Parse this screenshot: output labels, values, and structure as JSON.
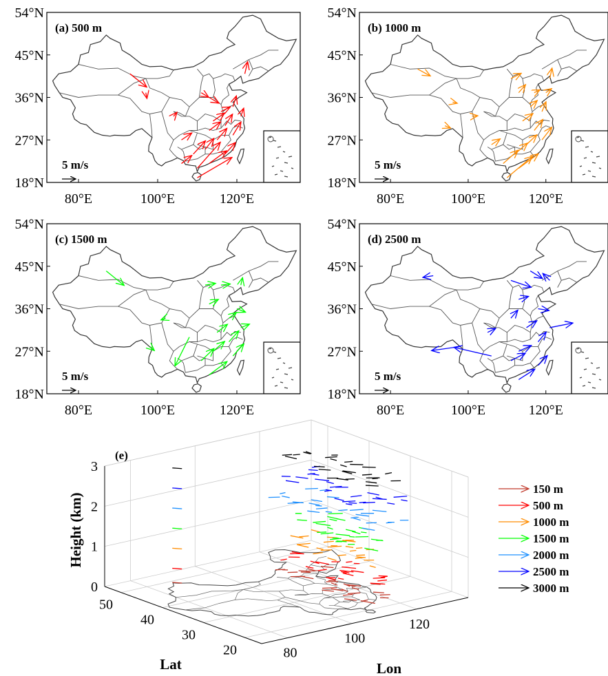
{
  "chart_data": [
    {
      "type": "vector-map",
      "panel": "(a) 500 m",
      "color": "#ff0000",
      "scale_label": "5 m/s",
      "x_ticks": [
        "80°E",
        "100°E",
        "120°E"
      ],
      "y_ticks": [
        "54°N",
        "45°N",
        "36°N",
        "27°N",
        "18°N"
      ],
      "x_range": [
        72,
        136
      ],
      "y_range": [
        18,
        54
      ],
      "vectors": [
        [
          93,
          41,
          5.8,
          -4.6
        ],
        [
          122,
          41,
          1.0,
          4.2
        ],
        [
          111,
          37,
          2.6,
          -1.6
        ],
        [
          113,
          36,
          3.4,
          -2.0
        ],
        [
          116,
          33,
          3.2,
          1.6
        ],
        [
          114,
          31,
          4.0,
          2.8
        ],
        [
          117,
          30,
          2.6,
          4.0
        ],
        [
          119,
          28,
          2.8,
          4.6
        ],
        [
          115,
          27,
          3.4,
          4.0
        ],
        [
          112,
          25,
          3.0,
          3.8
        ],
        [
          109,
          24,
          4.2,
          4.6
        ],
        [
          113,
          22,
          6.0,
          4.4
        ],
        [
          117,
          24,
          3.6,
          4.0
        ],
        [
          110,
          21,
          8.0,
          9.0
        ],
        [
          110,
          19,
          12.0,
          7.0
        ],
        [
          119,
          34,
          1.2,
          3.8
        ],
        [
          121,
          32,
          1.0,
          2.8
        ],
        [
          106,
          27,
          3.6,
          2.4
        ],
        [
          104,
          32,
          1.2,
          1.4
        ],
        [
          97,
          37,
          0.4,
          -2.0
        ],
        [
          113,
          29,
          4.0,
          3.0
        ],
        [
          106,
          22,
          3.6,
          2.8
        ]
      ]
    },
    {
      "type": "vector-map",
      "panel": "(b) 1000 m",
      "color": "#ff8c00",
      "scale_label": "5 m/s",
      "x_ticks": [
        "80°E",
        "100°E",
        "120°E"
      ],
      "y_ticks": [
        "54°N",
        "45°N",
        "36°N",
        "27°N",
        "18°N"
      ],
      "x_range": [
        72,
        136
      ],
      "y_range": [
        18,
        54
      ],
      "vectors": [
        [
          87,
          42,
          4.4,
          -2.4
        ],
        [
          121,
          40,
          0.8,
          3.6
        ],
        [
          111,
          40,
          3.6,
          1.8
        ],
        [
          113,
          37,
          2.4,
          2.8
        ],
        [
          116,
          34,
          2.4,
          2.2
        ],
        [
          114,
          31,
          3.6,
          2.6
        ],
        [
          117,
          29,
          3.0,
          3.8
        ],
        [
          119,
          27,
          3.4,
          4.4
        ],
        [
          115,
          26,
          3.6,
          3.4
        ],
        [
          112,
          24,
          4.4,
          3.8
        ],
        [
          109,
          22,
          5.2,
          4.6
        ],
        [
          113,
          21,
          6.8,
          5.0
        ],
        [
          110,
          19,
          8.8,
          7.4
        ],
        [
          119,
          33,
          1.4,
          3.4
        ],
        [
          96,
          35,
          1.6,
          -0.4
        ],
        [
          101,
          32,
          2.0,
          0.2
        ],
        [
          94,
          30,
          2.0,
          -0.8
        ],
        [
          106,
          26,
          3.0,
          2.0
        ],
        [
          120,
          37,
          2.0,
          1.4
        ],
        [
          117,
          37,
          2.0,
          1.0
        ]
      ]
    },
    {
      "type": "vector-map",
      "panel": "(c) 1500 m",
      "color": "#00ff00",
      "scale_label": "5 m/s",
      "x_ticks": [
        "80°E",
        "100°E",
        "120°E"
      ],
      "y_ticks": [
        "54°N",
        "45°N",
        "36°N",
        "27°N",
        "18°N"
      ],
      "x_range": [
        72,
        136
      ],
      "y_range": [
        18,
        54
      ],
      "vectors": [
        [
          87,
          44,
          6.2,
          -5.0
        ],
        [
          112,
          41,
          3.6,
          0.6
        ],
        [
          116,
          41,
          3.2,
          0.4
        ],
        [
          121,
          41,
          0.6,
          2.6
        ],
        [
          113,
          37,
          3.2,
          1.6
        ],
        [
          118,
          34,
          2.6,
          2.0
        ],
        [
          121,
          32,
          3.0,
          1.2
        ],
        [
          115,
          31,
          3.6,
          2.8
        ],
        [
          118,
          29,
          3.4,
          3.8
        ],
        [
          114,
          27,
          4.0,
          3.4
        ],
        [
          111,
          25,
          4.4,
          4.2
        ],
        [
          113,
          22,
          6.2,
          4.6
        ],
        [
          119,
          26,
          3.8,
          4.2
        ],
        [
          102,
          34,
          -1.6,
          -0.6
        ],
        [
          98,
          28,
          1.6,
          -1.4
        ],
        [
          108,
          30,
          -5.0,
          -10.0
        ],
        [
          120,
          36,
          3.0,
          -1.2
        ]
      ]
    },
    {
      "type": "vector-map",
      "panel": "(d) 2500 m",
      "color": "#0000ff",
      "scale_label": "5 m/s",
      "x_ticks": [
        "80°E",
        "100°E",
        "120°E"
      ],
      "y_ticks": [
        "54°N",
        "45°N",
        "36°N",
        "27°N",
        "18°N"
      ],
      "x_range": [
        72,
        136
      ],
      "y_range": [
        18,
        54
      ],
      "vectors": [
        [
          91,
          43,
          -3.6,
          -0.6
        ],
        [
          111,
          42,
          7.0,
          -2.4
        ],
        [
          116,
          44,
          4.2,
          -2.6
        ],
        [
          121,
          42,
          -2.4,
          2.4
        ],
        [
          113,
          38,
          3.4,
          1.0
        ],
        [
          118,
          36,
          3.8,
          -0.6
        ],
        [
          121,
          32,
          8.0,
          1.6
        ],
        [
          115,
          32,
          3.6,
          2.4
        ],
        [
          118,
          29,
          2.8,
          3.4
        ],
        [
          113,
          27,
          4.4,
          2.0
        ],
        [
          111,
          25,
          5.0,
          2.6
        ],
        [
          118,
          24,
          3.2,
          3.4
        ],
        [
          113,
          21,
          5.6,
          3.6
        ],
        [
          106,
          26,
          -13.0,
          3.0
        ],
        [
          98,
          28,
          -10.0,
          -1.4
        ],
        [
          105,
          31,
          2.8,
          1.4
        ],
        [
          111,
          34,
          2.4,
          2.8
        ]
      ]
    },
    {
      "type": "vector-3d",
      "panel": "(e)",
      "zlabel": "Height  (km)",
      "xlabel": "Lon",
      "ylabel": "Lat",
      "z_ticks": [
        "0",
        "1",
        "2",
        "3"
      ],
      "lon_ticks": [
        "80",
        "100",
        "120"
      ],
      "lat_ticks": [
        "50",
        "40",
        "30",
        "20"
      ],
      "legend": [
        {
          "label": "150   m",
          "color": "#c0392b"
        },
        {
          "label": "500   m",
          "color": "#ff0000"
        },
        {
          "label": "1000 m",
          "color": "#ff8c00"
        },
        {
          "label": "1500 m",
          "color": "#00ff00"
        },
        {
          "label": "2000 m",
          "color": "#1e90ff"
        },
        {
          "label": "2500 m",
          "color": "#0000ff"
        },
        {
          "label": "3000 m",
          "color": "#000000"
        }
      ],
      "levels_km": [
        0.15,
        0.5,
        1.0,
        1.5,
        2.0,
        2.5,
        3.0
      ],
      "level_colors": [
        "#c0392b",
        "#ff0000",
        "#ff8c00",
        "#00ff00",
        "#1e90ff",
        "#0000ff",
        "#000000"
      ]
    }
  ]
}
